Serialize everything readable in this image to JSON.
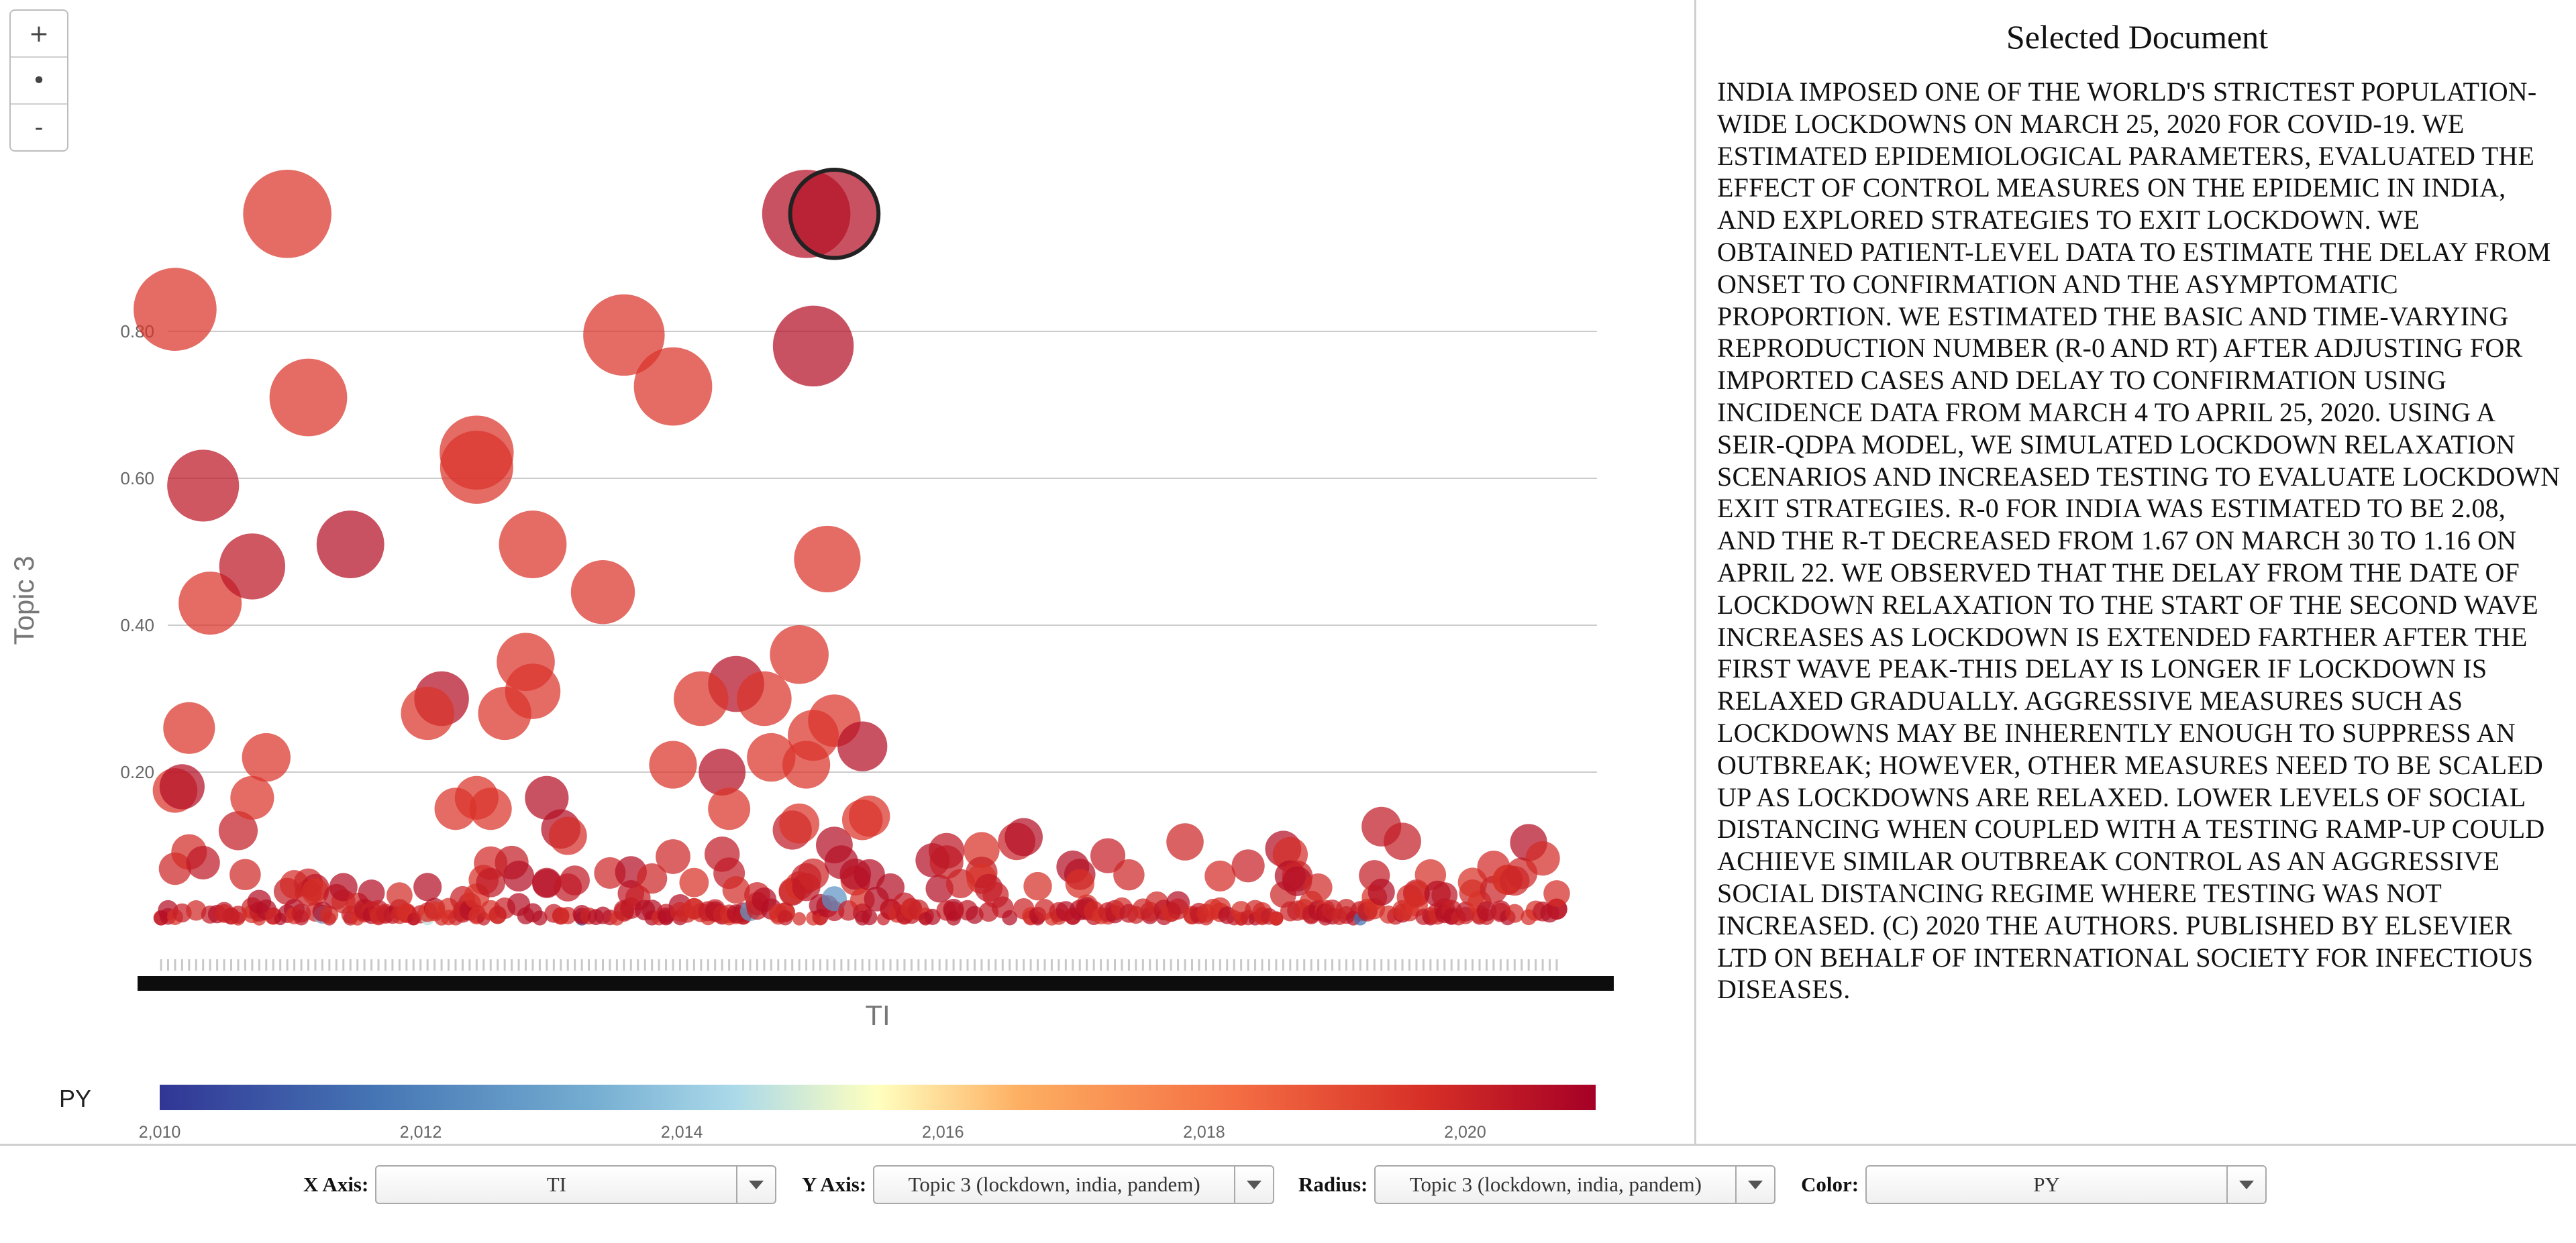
{
  "zoom": {
    "in_label": "+",
    "reset_label": "•",
    "out_label": "-"
  },
  "document": {
    "title": "Selected Document",
    "text": "INDIA IMPOSED ONE OF THE WORLD'S STRICTEST POPULATION-WIDE LOCKDOWNS ON MARCH 25, 2020 FOR COVID-19. WE ESTIMATED EPIDEMIOLOGICAL PARAMETERS, EVALUATED THE EFFECT OF CONTROL MEASURES ON THE EPIDEMIC IN INDIA, AND EXPLORED STRATEGIES TO EXIT LOCKDOWN. WE OBTAINED PATIENT-LEVEL DATA TO ESTIMATE THE DELAY FROM ONSET TO CONFIRMATION AND THE ASYMPTOMATIC PROPORTION. WE ESTIMATED THE BASIC AND TIME-VARYING REPRODUCTION NUMBER (R-0 AND RT) AFTER ADJUSTING FOR IMPORTED CASES AND DELAY TO CONFIRMATION USING INCIDENCE DATA FROM MARCH 4 TO APRIL 25, 2020. USING A SEIR-QDPA MODEL, WE SIMULATED LOCKDOWN RELAXATION SCENARIOS AND INCREASED TESTING TO EVALUATE LOCKDOWN EXIT STRATEGIES. R-0 FOR INDIA WAS ESTIMATED TO BE 2.08, AND THE R-T DECREASED FROM 1.67 ON MARCH 30 TO 1.16 ON APRIL 22. WE OBSERVED THAT THE DELAY FROM THE DATE OF LOCKDOWN RELAXATION TO THE START OF THE SECOND WAVE INCREASES AS LOCKDOWN IS EXTENDED FARTHER AFTER THE FIRST WAVE PEAK-THIS DELAY IS LONGER IF LOCKDOWN IS RELAXED GRADUALLY. AGGRESSIVE MEASURES SUCH AS LOCKDOWNS MAY BE INHERENTLY ENOUGH TO SUPPRESS AN OUTBREAK; HOWEVER, OTHER MEASURES NEED TO BE SCALED UP AS LOCKDOWNS ARE RELAXED. LOWER LEVELS OF SOCIAL DISTANCING WHEN COUPLED WITH A TESTING RAMP-UP COULD ACHIEVE SIMILAR OUTBREAK CONTROL AS AN AGGRESSIVE SOCIAL DISTANCING REGIME WHERE TESTING WAS NOT INCREASED. (C) 2020 THE AUTHORS. PUBLISHED BY ELSEVIER LTD ON BEHALF OF INTERNATIONAL SOCIETY FOR INFECTIOUS DISEASES."
  },
  "controls": {
    "x_axis": {
      "label": "X Axis:",
      "value": "TI"
    },
    "y_axis": {
      "label": "Y Axis:",
      "value": "Topic 3 (lockdown, india, pandem)"
    },
    "radius": {
      "label": "Radius:",
      "value": "Topic 3 (lockdown, india, pandem)"
    },
    "color": {
      "label": "Color:",
      "value": "PY"
    }
  },
  "colors": {
    "low": "#313695",
    "mid": "#ffffbf",
    "high": "#a50026",
    "gridline": "#cccccc",
    "selected_stroke": "#222222"
  },
  "chart_data": {
    "type": "scatter",
    "xlabel": "TI",
    "ylabel": "Topic 3",
    "y_ticks": [
      "0.20",
      "0.40",
      "0.60",
      "0.80"
    ],
    "ylim": [
      -0.09,
      0.96
    ],
    "x_category_count": 200,
    "radius_encodes": "Topic 3",
    "grid": true,
    "color_legend": {
      "title": "PY",
      "range": [
        2010,
        2021
      ],
      "tick_labels": [
        "2,010",
        "2,012",
        "2,014",
        "2,016",
        "2,018",
        "2,020"
      ]
    },
    "points": [
      {
        "x": 2,
        "y": 0.83,
        "py": 2019.6
      },
      {
        "x": 18,
        "y": 0.96,
        "py": 2019.6
      },
      {
        "x": 21,
        "y": 0.71,
        "py": 2019.6
      },
      {
        "x": 6,
        "y": 0.59,
        "py": 2020.4
      },
      {
        "x": 7,
        "y": 0.43,
        "py": 2019.6
      },
      {
        "x": 13,
        "y": 0.48,
        "py": 2020.4
      },
      {
        "x": 27,
        "y": 0.51,
        "py": 2020.6
      },
      {
        "x": 45,
        "y": 0.635,
        "py": 2019.6
      },
      {
        "x": 45,
        "y": 0.615,
        "py": 2019.6
      },
      {
        "x": 66,
        "y": 0.795,
        "py": 2019.6
      },
      {
        "x": 73,
        "y": 0.725,
        "py": 2019.6
      },
      {
        "x": 53,
        "y": 0.51,
        "py": 2019.6
      },
      {
        "x": 63,
        "y": 0.445,
        "py": 2019.6
      },
      {
        "x": 92,
        "y": 0.96,
        "py": 2020.6
      },
      {
        "x": 96,
        "y": 0.96,
        "py": 2020.6,
        "selected": true
      },
      {
        "x": 93,
        "y": 0.78,
        "py": 2020.6
      },
      {
        "x": 95,
        "y": 0.49,
        "py": 2019.6
      },
      {
        "x": 91,
        "y": 0.36,
        "py": 2019.6
      },
      {
        "x": 82,
        "y": 0.32,
        "py": 2020.6
      },
      {
        "x": 77,
        "y": 0.3,
        "py": 2019.6
      },
      {
        "x": 86,
        "y": 0.3,
        "py": 2019.6
      },
      {
        "x": 87,
        "y": 0.22,
        "py": 2019.6
      },
      {
        "x": 73,
        "y": 0.21,
        "py": 2019.6
      },
      {
        "x": 80,
        "y": 0.2,
        "py": 2020.6
      },
      {
        "x": 93,
        "y": 0.25,
        "py": 2019.6
      },
      {
        "x": 96,
        "y": 0.27,
        "py": 2019.6
      },
      {
        "x": 100,
        "y": 0.235,
        "py": 2020.6
      },
      {
        "x": 92,
        "y": 0.21,
        "py": 2019.6
      },
      {
        "x": 52,
        "y": 0.35,
        "py": 2019.6
      },
      {
        "x": 53,
        "y": 0.31,
        "py": 2019.6
      },
      {
        "x": 40,
        "y": 0.3,
        "py": 2020.6
      },
      {
        "x": 38,
        "y": 0.28,
        "py": 2019.6
      },
      {
        "x": 49,
        "y": 0.28,
        "py": 2019.6
      },
      {
        "x": 4,
        "y": 0.26,
        "py": 2019.6
      },
      {
        "x": 15,
        "y": 0.22,
        "py": 2019.6
      },
      {
        "x": 2,
        "y": 0.175,
        "py": 2019.6
      },
      {
        "x": 3,
        "y": 0.18,
        "py": 2020.6
      },
      {
        "x": 13,
        "y": 0.165,
        "py": 2019.6
      },
      {
        "x": 42,
        "y": 0.15,
        "py": 2019.6
      },
      {
        "x": 45,
        "y": 0.165,
        "py": 2019.6
      },
      {
        "x": 47,
        "y": 0.15,
        "py": 2019.6
      },
      {
        "x": 55,
        "y": 0.165,
        "py": 2020.6
      },
      {
        "x": 100,
        "y": 0.135,
        "py": 2019.6
      },
      {
        "x": 101,
        "y": 0.14,
        "py": 2019.6
      },
      {
        "x": 91,
        "y": 0.13,
        "py": 2019.6
      },
      {
        "x": 81,
        "y": 0.15,
        "py": 2019.6
      }
    ]
  }
}
